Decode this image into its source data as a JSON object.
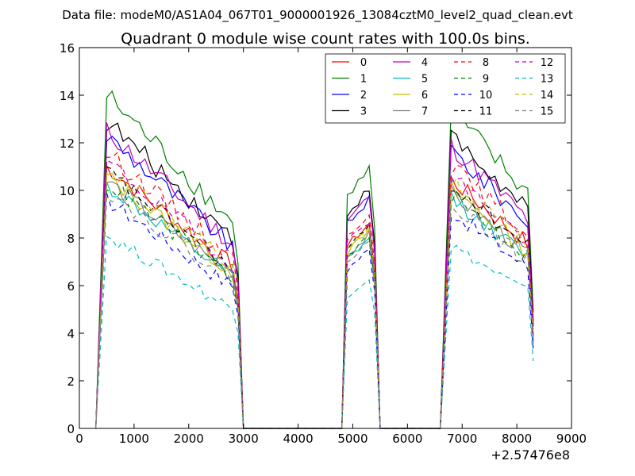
{
  "chart_data": {
    "type": "line",
    "suptitle": "Data file: modeM0/AS1A04_067T01_9000001926_13084cztM0_level2_quad_clean.evt",
    "title": "Quadrant 0 module wise count rates with 100.0s bins.",
    "xlabel": "",
    "ylabel": "",
    "x_offset_label": "+2.57476e8",
    "xlim": [
      0,
      9000
    ],
    "ylim": [
      0,
      16
    ],
    "xticks": [
      "0",
      "1000",
      "2000",
      "3000",
      "4000",
      "5000",
      "6000",
      "7000",
      "8000",
      "9000"
    ],
    "yticks": [
      "0",
      "2",
      "4",
      "6",
      "8",
      "10",
      "12",
      "14",
      "16"
    ],
    "grid": false,
    "legend_position": "top-right",
    "legend_columns": 4,
    "series": [
      {
        "name": "0",
        "color": "#ff0000",
        "dash": "solid",
        "base": 11.0,
        "bump": 0.0
      },
      {
        "name": "1",
        "color": "#008000",
        "dash": "solid",
        "base": 14.0,
        "bump": 0.0
      },
      {
        "name": "2",
        "color": "#0000ff",
        "dash": "solid",
        "base": 12.3,
        "bump": 0.0
      },
      {
        "name": "3",
        "color": "#000000",
        "dash": "solid",
        "base": 12.9,
        "bump": 0.0
      },
      {
        "name": "4",
        "color": "#bf00bf",
        "dash": "solid",
        "base": 12.5,
        "bump": 0.0
      },
      {
        "name": "5",
        "color": "#00bfbf",
        "dash": "solid",
        "base": 10.2,
        "bump": 0.0
      },
      {
        "name": "6",
        "color": "#bfbf00",
        "dash": "solid",
        "base": 10.6,
        "bump": 0.0
      },
      {
        "name": "7",
        "color": "#808080",
        "dash": "solid",
        "base": 10.4,
        "bump": 0.0
      },
      {
        "name": "8",
        "color": "#ff0000",
        "dash": "dashed",
        "base": 11.6,
        "bump": 0.0
      },
      {
        "name": "9",
        "color": "#008000",
        "dash": "dashed",
        "base": 10.3,
        "bump": 0.0
      },
      {
        "name": "10",
        "color": "#0000ff",
        "dash": "dashed",
        "base": 9.6,
        "bump": 0.0
      },
      {
        "name": "11",
        "color": "#000000",
        "dash": "dashed",
        "base": 10.8,
        "bump": 0.0
      },
      {
        "name": "12",
        "color": "#bf00bf",
        "dash": "dashed",
        "base": 11.2,
        "bump": 0.0
      },
      {
        "name": "13",
        "color": "#00bfbf",
        "dash": "dashed",
        "base": 8.1,
        "bump": 0.0
      },
      {
        "name": "14",
        "color": "#bfbf00",
        "dash": "dashed",
        "base": 10.9,
        "bump": 0.0
      },
      {
        "name": "15",
        "color": "#808080",
        "dash": "dashed",
        "base": 10.0,
        "bump": 0.0
      }
    ],
    "segments": [
      {
        "x_start": 500,
        "x_end": 2800,
        "decay_to": 0.62
      },
      {
        "x_start": 4900,
        "x_end": 5300,
        "decay_to": 0.85
      },
      {
        "x_start": 6800,
        "x_end": 8200,
        "decay_to": 0.74
      }
    ],
    "gaps_zero_ranges": [
      [
        3000,
        4800
      ],
      [
        5500,
        6600
      ]
    ]
  }
}
